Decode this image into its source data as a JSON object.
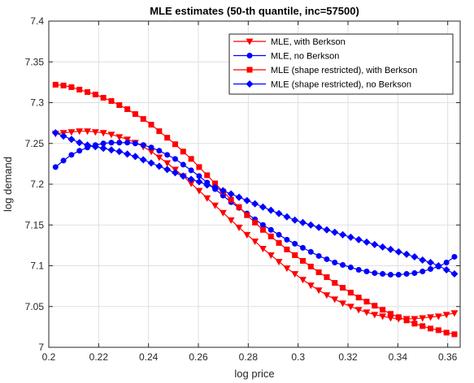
{
  "chart_data": {
    "type": "line",
    "title": "MLE estimates (50-th quantile, inc=57500)",
    "xlabel": "log price",
    "ylabel": "log demand",
    "xlim": [
      0.2,
      0.365
    ],
    "ylim": [
      7.0,
      7.4
    ],
    "xticks": [
      "0.2",
      "0.22",
      "0.24",
      "0.26",
      "0.28",
      "0.3",
      "0.32",
      "0.34",
      "0.36"
    ],
    "yticks": [
      "7",
      "7.05",
      "7.1",
      "7.15",
      "7.2",
      "7.25",
      "7.3",
      "7.35",
      "7.4"
    ],
    "grid": true,
    "legend_position": "top-right",
    "x": [
      0.2027,
      0.2059,
      0.2091,
      0.2123,
      0.2155,
      0.2187,
      0.2219,
      0.2251,
      0.2283,
      0.2315,
      0.2347,
      0.2379,
      0.2411,
      0.2443,
      0.2475,
      0.2507,
      0.2539,
      0.2571,
      0.2603,
      0.2635,
      0.2667,
      0.2699,
      0.2731,
      0.2763,
      0.2795,
      0.2827,
      0.2859,
      0.2891,
      0.2923,
      0.2955,
      0.2987,
      0.3019,
      0.3051,
      0.3083,
      0.3115,
      0.3147,
      0.3179,
      0.3211,
      0.3243,
      0.3275,
      0.3307,
      0.3339,
      0.3371,
      0.3403,
      0.3435,
      0.3467,
      0.3499,
      0.3531,
      0.3563,
      0.3595,
      0.3627
    ],
    "series": [
      {
        "name": "MLE, with Berkson",
        "color": "#ff0000",
        "marker": "triangle-down",
        "values": [
          7.262,
          7.263,
          7.264,
          7.265,
          7.265,
          7.264,
          7.263,
          7.261,
          7.258,
          7.255,
          7.251,
          7.246,
          7.24,
          7.233,
          7.226,
          7.218,
          7.21,
          7.201,
          7.192,
          7.183,
          7.174,
          7.165,
          7.156,
          7.147,
          7.138,
          7.13,
          7.121,
          7.113,
          7.105,
          7.097,
          7.09,
          7.083,
          7.076,
          7.07,
          7.064,
          7.059,
          7.054,
          7.05,
          7.046,
          7.043,
          7.04,
          7.038,
          7.036,
          7.035,
          7.035,
          7.035,
          7.036,
          7.037,
          7.038,
          7.04,
          7.042
        ]
      },
      {
        "name": "MLE, no Berkson",
        "color": "#0000ff",
        "marker": "circle",
        "values": [
          7.221,
          7.229,
          7.236,
          7.241,
          7.245,
          7.248,
          7.25,
          7.251,
          7.251,
          7.251,
          7.25,
          7.248,
          7.245,
          7.241,
          7.236,
          7.231,
          7.224,
          7.217,
          7.21,
          7.202,
          7.194,
          7.186,
          7.178,
          7.171,
          7.164,
          7.157,
          7.15,
          7.144,
          7.138,
          7.132,
          7.127,
          7.122,
          7.117,
          7.112,
          7.108,
          7.104,
          7.101,
          7.098,
          7.095,
          7.093,
          7.091,
          7.09,
          7.089,
          7.089,
          7.09,
          7.091,
          7.093,
          7.096,
          7.099,
          7.104,
          7.111
        ]
      },
      {
        "name": "MLE (shape restricted), with Berkson",
        "color": "#ff0000",
        "marker": "square",
        "values": [
          7.322,
          7.321,
          7.319,
          7.316,
          7.313,
          7.31,
          7.306,
          7.302,
          7.297,
          7.292,
          7.286,
          7.28,
          7.273,
          7.265,
          7.257,
          7.249,
          7.24,
          7.231,
          7.221,
          7.211,
          7.201,
          7.191,
          7.181,
          7.172,
          7.162,
          7.153,
          7.144,
          7.136,
          7.128,
          7.12,
          7.113,
          7.106,
          7.099,
          7.092,
          7.086,
          7.079,
          7.073,
          7.067,
          7.061,
          7.056,
          7.051,
          7.046,
          7.041,
          7.037,
          7.033,
          7.029,
          7.026,
          7.023,
          7.021,
          7.018,
          7.016
        ]
      },
      {
        "name": "MLE (shape restricted), no Berkson",
        "color": "#0000ff",
        "marker": "diamond",
        "values": [
          7.263,
          7.259,
          7.255,
          7.251,
          7.248,
          7.246,
          7.244,
          7.242,
          7.24,
          7.237,
          7.234,
          7.23,
          7.226,
          7.222,
          7.218,
          7.214,
          7.21,
          7.206,
          7.203,
          7.199,
          7.196,
          7.192,
          7.188,
          7.184,
          7.18,
          7.176,
          7.172,
          7.168,
          7.164,
          7.16,
          7.156,
          7.153,
          7.15,
          7.147,
          7.144,
          7.141,
          7.138,
          7.135,
          7.132,
          7.129,
          7.126,
          7.123,
          7.12,
          7.117,
          7.114,
          7.111,
          7.107,
          7.104,
          7.1,
          7.095,
          7.09
        ]
      }
    ]
  }
}
